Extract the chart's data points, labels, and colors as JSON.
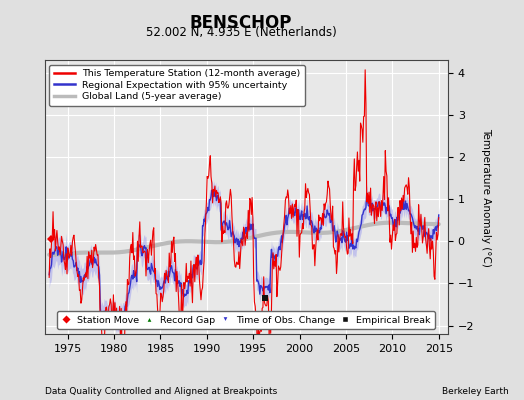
{
  "title": "BENSCHOP",
  "subtitle": "52.002 N, 4.935 E (Netherlands)",
  "xlabel_bottom": "Data Quality Controlled and Aligned at Breakpoints",
  "xlabel_right": "Berkeley Earth",
  "ylabel": "Temperature Anomaly (°C)",
  "ylim": [
    -2.2,
    4.3
  ],
  "yticks": [
    -2,
    -1,
    0,
    1,
    2,
    3,
    4
  ],
  "xticks": [
    1975,
    1980,
    1985,
    1990,
    1995,
    2000,
    2005,
    2010,
    2015
  ],
  "xlim": [
    1972.5,
    2016
  ],
  "bg_color": "#e0e0e0",
  "plot_bg_color": "#e8e8e8",
  "grid_color": "#ffffff",
  "red_color": "#ee0000",
  "blue_color": "#3333cc",
  "blue_fill_color": "#aaaaee",
  "gray_color": "#bbbbbb",
  "marker_red": "#ee0000",
  "marker_green": "#007700",
  "marker_blue": "#3333cc",
  "marker_black": "#111111",
  "empirical_break_x": 1996.3,
  "empirical_break_y": -1.35,
  "station_move_x": 1973.2,
  "station_move_y": 0.05
}
